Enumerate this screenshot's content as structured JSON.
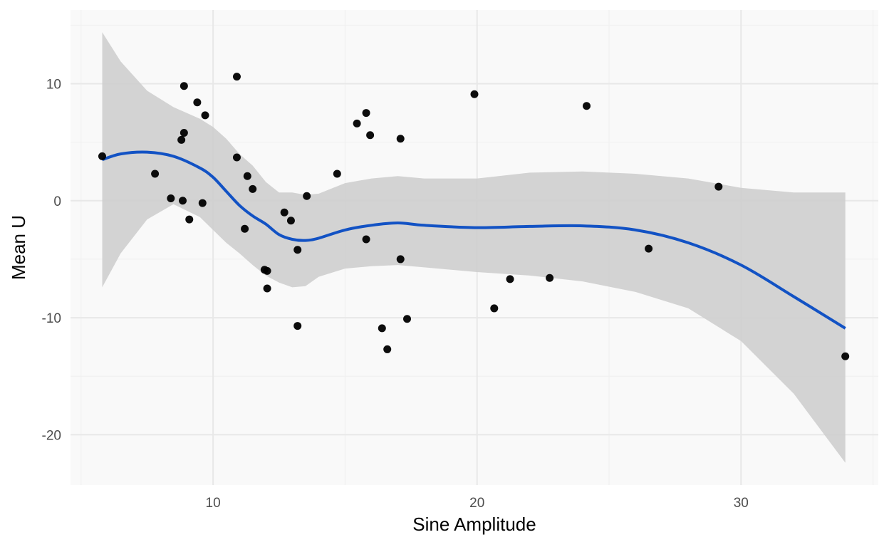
{
  "chart_data": {
    "type": "scatter",
    "title": "",
    "xlabel": "Sine Amplitude",
    "ylabel": "Mean U",
    "xlim": [
      4.6,
      35.2
    ],
    "ylim": [
      -24.3,
      16.3
    ],
    "x_major_ticks": [
      10,
      20,
      30
    ],
    "x_minor_ticks": [
      5,
      15,
      25,
      35
    ],
    "y_major_ticks": [
      10,
      0,
      -10,
      -20
    ],
    "y_minor_ticks": [
      15,
      5,
      -5,
      -15
    ],
    "grid": true,
    "legend": "none",
    "colors": {
      "panel_background": "#f9f9f9",
      "major_grid": "#e8e8e8",
      "minor_grid": "#f0f0f0",
      "points": "#000000",
      "smooth_line": "#1252c4",
      "confidence_band": "#cccccc"
    },
    "points": [
      {
        "x": 5.8,
        "y": 3.8
      },
      {
        "x": 7.8,
        "y": 2.3
      },
      {
        "x": 8.4,
        "y": 0.2
      },
      {
        "x": 8.8,
        "y": 5.2
      },
      {
        "x": 8.9,
        "y": 9.8
      },
      {
        "x": 8.9,
        "y": 5.8
      },
      {
        "x": 8.85,
        "y": 0.0
      },
      {
        "x": 9.1,
        "y": -1.6
      },
      {
        "x": 9.4,
        "y": 8.4
      },
      {
        "x": 9.6,
        "y": -0.2
      },
      {
        "x": 9.7,
        "y": 7.3
      },
      {
        "x": 10.9,
        "y": 10.6
      },
      {
        "x": 10.9,
        "y": 3.7
      },
      {
        "x": 11.2,
        "y": -2.4
      },
      {
        "x": 11.3,
        "y": 2.1
      },
      {
        "x": 11.5,
        "y": 1.0
      },
      {
        "x": 11.95,
        "y": -5.9
      },
      {
        "x": 12.05,
        "y": -6.0
      },
      {
        "x": 12.05,
        "y": -7.5
      },
      {
        "x": 12.7,
        "y": -1.0
      },
      {
        "x": 12.95,
        "y": -1.7
      },
      {
        "x": 13.2,
        "y": -4.2
      },
      {
        "x": 13.2,
        "y": -10.7
      },
      {
        "x": 13.55,
        "y": 0.4
      },
      {
        "x": 14.7,
        "y": 2.3
      },
      {
        "x": 15.45,
        "y": 6.6
      },
      {
        "x": 15.8,
        "y": 7.5
      },
      {
        "x": 15.8,
        "y": -3.3
      },
      {
        "x": 15.95,
        "y": 5.6
      },
      {
        "x": 16.4,
        "y": -10.9
      },
      {
        "x": 16.6,
        "y": -12.7
      },
      {
        "x": 17.1,
        "y": 5.3
      },
      {
        "x": 17.1,
        "y": -5.0
      },
      {
        "x": 17.35,
        "y": -10.1
      },
      {
        "x": 19.9,
        "y": 9.1
      },
      {
        "x": 20.65,
        "y": -9.2
      },
      {
        "x": 21.25,
        "y": -6.7
      },
      {
        "x": 22.75,
        "y": -6.6
      },
      {
        "x": 24.15,
        "y": 8.1
      },
      {
        "x": 26.5,
        "y": -4.1
      },
      {
        "x": 29.15,
        "y": 1.2
      },
      {
        "x": 33.95,
        "y": -13.3
      }
    ],
    "smooth": {
      "x": [
        5.8,
        6.5,
        7.5,
        8.5,
        9.5,
        10.0,
        10.5,
        11.0,
        11.5,
        12.0,
        12.5,
        13.0,
        13.5,
        14.0,
        15.0,
        16.0,
        17.0,
        18.0,
        20.0,
        22.0,
        24.0,
        26.0,
        28.0,
        30.0,
        32.0,
        33.95
      ],
      "y": [
        3.5,
        4.0,
        4.15,
        3.8,
        2.8,
        2.0,
        0.8,
        -0.4,
        -1.3,
        -2.0,
        -2.9,
        -3.3,
        -3.4,
        -3.2,
        -2.5,
        -2.1,
        -1.9,
        -2.1,
        -2.3,
        -2.2,
        -2.15,
        -2.5,
        -3.6,
        -5.5,
        -8.2,
        -10.9
      ],
      "upper": [
        14.4,
        11.9,
        9.4,
        8.0,
        7.0,
        6.3,
        5.3,
        4.0,
        3.0,
        1.6,
        0.7,
        0.7,
        0.5,
        0.6,
        1.5,
        1.9,
        2.1,
        1.9,
        1.9,
        2.4,
        2.5,
        2.3,
        1.9,
        1.1,
        0.7,
        0.7
      ],
      "lower": [
        -7.4,
        -4.5,
        -1.6,
        -0.3,
        -1.4,
        -2.5,
        -3.6,
        -4.5,
        -5.5,
        -6.4,
        -7.0,
        -7.4,
        -7.3,
        -6.5,
        -5.8,
        -5.6,
        -5.5,
        -5.7,
        -6.1,
        -6.4,
        -6.9,
        -7.8,
        -9.2,
        -12.0,
        -16.5,
        -22.4
      ]
    }
  }
}
